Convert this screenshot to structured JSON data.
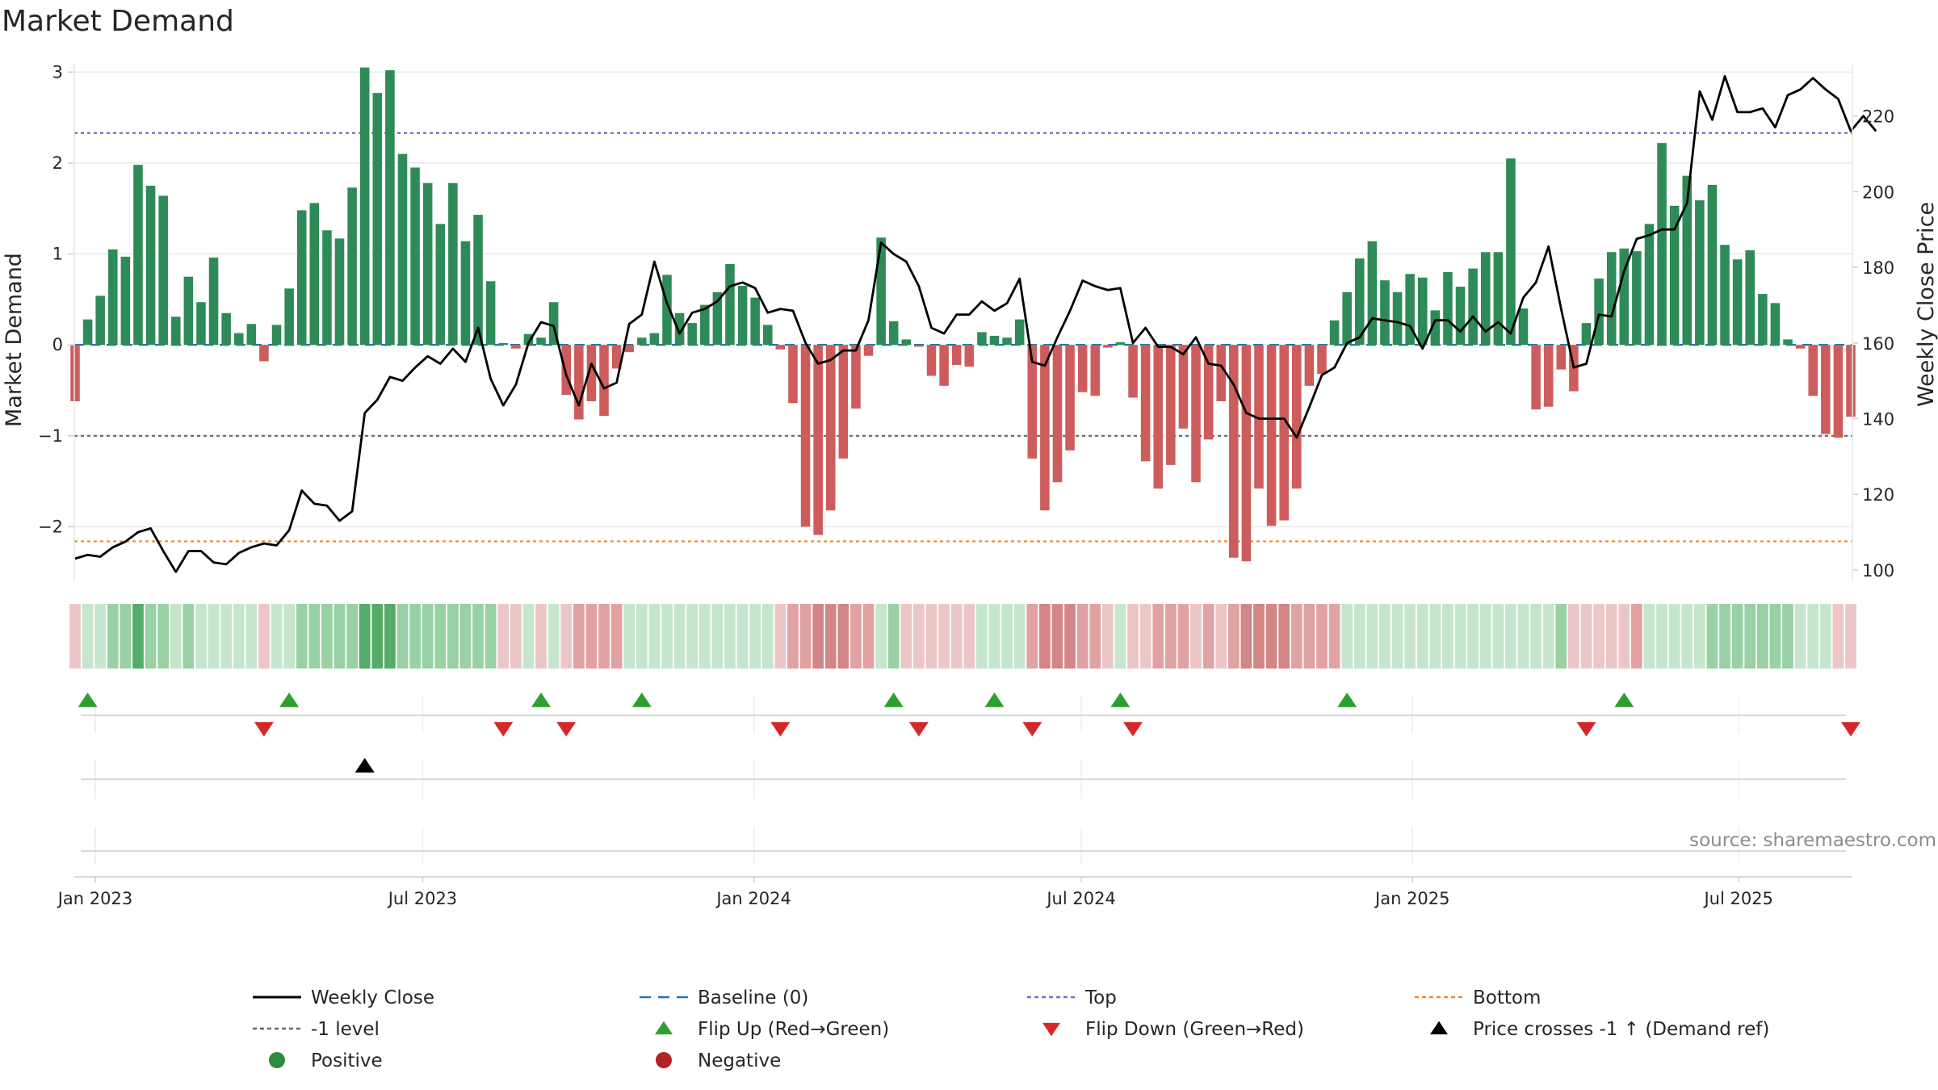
{
  "chart_data": {
    "type": "bar",
    "title": "Market Demand",
    "ylabel_left": "Market Demand",
    "ylabel_right": "Weekly Close Price",
    "ylim_left": [
      -2.6,
      3.1
    ],
    "yticks_left": [
      3,
      2,
      1,
      0,
      -1,
      -2
    ],
    "ytick_labels_left": [
      "3",
      "2",
      "1",
      "0",
      "−1",
      "−2"
    ],
    "ylim_right": [
      97,
      234
    ],
    "yticks_right": [
      220,
      200,
      180,
      160,
      140,
      120,
      100
    ],
    "ytick_labels_right": [
      "220",
      "200",
      "180",
      "160",
      "140",
      "120",
      "100"
    ],
    "x_start": "2022-12-26",
    "x_step_days": 7,
    "xticks": [
      {
        "label": "Jan 2023",
        "week": 1.6
      },
      {
        "label": "Jul 2023",
        "week": 27.6
      },
      {
        "label": "Jan 2024",
        "week": 53.9
      },
      {
        "label": "Jul 2024",
        "week": 79.9
      },
      {
        "label": "Jan 2025",
        "week": 106.2
      },
      {
        "label": "Jul 2025",
        "week": 132.1
      }
    ],
    "reference_lines": {
      "top": 2.33,
      "bottom": -2.16,
      "minus_one": -1,
      "baseline": 0
    },
    "series": [
      {
        "name": "Market Demand",
        "type": "bar",
        "values": [
          -0.62,
          0.28,
          0.54,
          1.05,
          0.97,
          1.98,
          1.75,
          1.64,
          0.31,
          0.75,
          0.47,
          0.96,
          0.35,
          0.13,
          0.23,
          -0.18,
          0.22,
          0.62,
          1.48,
          1.56,
          1.26,
          1.17,
          1.73,
          3.05,
          2.77,
          3.02,
          2.1,
          1.95,
          1.78,
          1.33,
          1.78,
          1.14,
          1.43,
          0.7,
          0.02,
          -0.04,
          0.12,
          0.08,
          0.47,
          -0.55,
          -0.82,
          -0.62,
          -0.78,
          -0.26,
          -0.08,
          0.08,
          0.13,
          0.77,
          0.35,
          0.24,
          0.44,
          0.58,
          0.89,
          0.65,
          0.52,
          0.22,
          -0.05,
          -0.64,
          -2.0,
          -2.09,
          -1.82,
          -1.25,
          -0.7,
          -0.12,
          1.18,
          0.26,
          0.06,
          -0.02,
          -0.34,
          -0.45,
          -0.22,
          -0.24,
          0.14,
          0.1,
          0.08,
          0.28,
          -1.25,
          -1.82,
          -1.51,
          -1.16,
          -0.52,
          -0.56,
          -0.03,
          0.03,
          -0.58,
          -1.28,
          -1.58,
          -1.32,
          -0.92,
          -1.51,
          -1.04,
          -0.62,
          -2.34,
          -2.38,
          -1.58,
          -1.99,
          -1.93,
          -1.58,
          -0.45,
          -0.32,
          0.27,
          0.58,
          0.95,
          1.14,
          0.71,
          0.58,
          0.78,
          0.74,
          0.38,
          0.8,
          0.64,
          0.84,
          1.02,
          1.02,
          2.05,
          0.4,
          -0.71,
          -0.68,
          -0.27,
          -0.51,
          0.24,
          0.73,
          1.02,
          1.06,
          1.03,
          1.33,
          2.22,
          1.53,
          1.86,
          1.59,
          1.76,
          1.1,
          0.94,
          1.04,
          0.56,
          0.46,
          0.06,
          -0.04,
          -0.56,
          -0.98,
          -1.02,
          -0.79
        ]
      },
      {
        "name": "Weekly Close",
        "type": "line",
        "values": [
          103,
          104,
          103.5,
          106,
          107.5,
          110,
          111,
          105,
          99.5,
          105,
          105,
          102,
          101.5,
          104.5,
          106,
          107,
          106.5,
          110.5,
          121,
          117.5,
          117,
          113,
          115.5,
          141.5,
          145,
          151,
          150,
          153.5,
          156.5,
          154.5,
          158.5,
          155,
          164,
          150.5,
          143.5,
          149,
          160,
          165.5,
          164.5,
          151.5,
          143.5,
          154.5,
          148,
          149.5,
          165,
          167.5,
          181.5,
          170.5,
          162.5,
          168,
          169,
          171,
          175,
          176,
          174.5,
          168,
          169,
          168.5,
          160,
          154.5,
          155.5,
          158,
          158,
          166,
          186.5,
          183.5,
          181.5,
          175,
          164,
          162.5,
          167.5,
          167.5,
          171,
          168.5,
          170.5,
          177,
          155,
          154,
          161.5,
          168.5,
          176.5,
          175,
          174,
          174.5,
          160,
          164,
          159,
          159,
          157,
          161.5,
          154.5,
          154,
          149,
          141.5,
          140,
          140,
          140,
          135,
          143,
          151.5,
          153.5,
          160,
          161.5,
          166.5,
          166,
          165.5,
          164.5,
          158.5,
          166,
          166,
          163,
          167,
          163,
          165.5,
          162.5,
          172,
          176,
          185.5,
          169,
          153.5,
          154.5,
          167.5,
          167,
          179,
          187.5,
          188.5,
          190,
          190,
          197,
          226.5,
          219,
          230.5,
          221,
          221,
          222,
          217,
          225.5,
          227,
          230,
          227,
          224.5,
          216,
          220,
          216
        ]
      }
    ],
    "flip_up_weeks": [
      1,
      17,
      37,
      45,
      65,
      73,
      83,
      101,
      123
    ],
    "flip_down_weeks": [
      15,
      34,
      39,
      56,
      67,
      76,
      84,
      120,
      141
    ],
    "price_cross_weeks": [
      23
    ],
    "strip_groups": {
      "negative_light": [
        0,
        15,
        34,
        35,
        37,
        39,
        56,
        66,
        67,
        68,
        69,
        70,
        71,
        82,
        84,
        85,
        89,
        91,
        119,
        120,
        121,
        122,
        123,
        140,
        141
      ],
      "negative_mid": [
        40,
        41,
        42,
        43,
        57,
        58,
        62,
        63,
        76,
        80,
        81,
        86,
        87,
        88,
        90,
        92,
        97,
        98,
        99,
        100,
        124,
        142,
        143
      ],
      "negative_strong": [
        59,
        60,
        61,
        77,
        78,
        79,
        93,
        94,
        95,
        96
      ],
      "positive_light": [
        1,
        2,
        8,
        10,
        11,
        12,
        13,
        14,
        16,
        17,
        36,
        38,
        44,
        45,
        46,
        47,
        48,
        49,
        50,
        51,
        52,
        53,
        54,
        55,
        64,
        72,
        73,
        74,
        75,
        83,
        101,
        102,
        103,
        104,
        105,
        106,
        107,
        108,
        109,
        110,
        111,
        112,
        113,
        114,
        115,
        116,
        117,
        125,
        126,
        127,
        128,
        129,
        137,
        138,
        139
      ],
      "positive_mid": [
        3,
        4,
        6,
        7,
        9,
        18,
        19,
        20,
        21,
        22,
        26,
        27,
        28,
        29,
        30,
        31,
        32,
        33,
        65,
        118,
        130,
        131,
        132,
        133,
        134,
        135,
        136
      ],
      "positive_strong": [
        5,
        23,
        24,
        25
      ]
    },
    "source": "source: sharemaestro.com",
    "legend": [
      {
        "label": "Weekly Close",
        "marker": "solid-line",
        "color": "#000000"
      },
      {
        "label": "Baseline (0)",
        "marker": "dashed-line",
        "color": "#1f77b4"
      },
      {
        "label": "Top",
        "marker": "dotted-line",
        "color": "#7b68c8"
      },
      {
        "label": "Bottom",
        "marker": "dotted-line",
        "color": "#ee8a1a"
      },
      {
        "label": "-1 level",
        "marker": "dotted-line",
        "color": "#666666"
      },
      {
        "label": "Flip Up (Red→Green)",
        "marker": "triangle-up",
        "color": "#2ca02c"
      },
      {
        "label": "Flip Down (Green→Red)",
        "marker": "triangle-down",
        "color": "#d62728"
      },
      {
        "label": "Price crosses -1 ↑ (Demand ref)",
        "marker": "triangle-up",
        "color": "#000000"
      },
      {
        "label": "Positive",
        "marker": "circle",
        "color": "#2c8c3c"
      },
      {
        "label": "Negative",
        "marker": "circle",
        "color": "#b22222"
      }
    ]
  },
  "colors": {
    "positive_bar": "#2e8b57",
    "negative_bar": "#cd5c5c",
    "price_line": "#000000",
    "baseline": "#1f77b4",
    "top_line": "#7b68c8",
    "bottom_line": "#ee8a1a",
    "minus_one_line": "#666666",
    "flip_up": "#2ca02c",
    "flip_down": "#d62728",
    "grid": "#e6ecf2",
    "strip_neg_light": "#ecc6c6",
    "strip_neg_mid": "#e0a2a2",
    "strip_neg_strong": "#d38686",
    "strip_pos_light": "#c5e5cc",
    "strip_pos_mid": "#98d1a4",
    "strip_pos_strong": "#55ab68"
  }
}
